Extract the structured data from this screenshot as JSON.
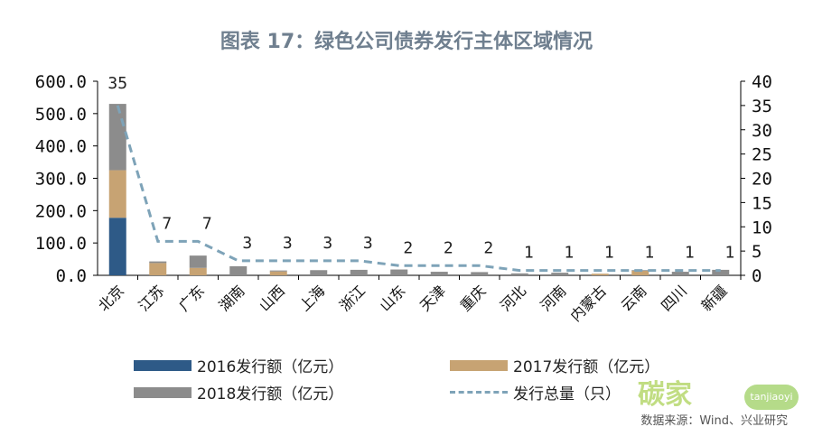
{
  "chart_data": {
    "type": "bar",
    "title": "图表 17：绿色公司债券发行主体区域情况",
    "categories": [
      "北京",
      "江苏",
      "广东",
      "湖南",
      "山西",
      "上海",
      "浙江",
      "山东",
      "天津",
      "重庆",
      "河北",
      "河南",
      "内蒙古",
      "云南",
      "四川",
      "新疆"
    ],
    "series": [
      {
        "name": "2016发行额（亿元）",
        "kind": "stacked-bar",
        "color": "#2e5a87",
        "values": [
          178,
          0,
          0,
          0,
          0,
          0,
          0,
          0,
          0,
          0,
          0,
          0,
          0,
          0,
          0,
          0
        ]
      },
      {
        "name": "2017发行额（亿元）",
        "kind": "stacked-bar",
        "color": "#c7a373",
        "values": [
          147,
          38,
          23,
          0,
          12,
          0,
          0,
          0,
          0,
          0,
          0,
          0,
          5,
          14,
          0,
          0
        ]
      },
      {
        "name": "2018发行额（亿元）",
        "kind": "stacked-bar",
        "color": "#8c8c8c",
        "values": [
          205,
          5,
          38,
          28,
          3,
          16,
          17,
          18,
          11,
          10,
          6,
          8,
          0,
          2,
          11,
          17
        ]
      },
      {
        "name": "发行总量（只）",
        "kind": "line",
        "axis": "right",
        "color": "#7ea3b8",
        "values": [
          35,
          7,
          7,
          3,
          3,
          3,
          3,
          2,
          2,
          2,
          1,
          1,
          1,
          1,
          1,
          1
        ]
      }
    ],
    "data_labels": [
      "35",
      "7",
      "7",
      "3",
      "3",
      "3",
      "3",
      "2",
      "2",
      "2",
      "1",
      "1",
      "1",
      "1",
      "1",
      "1"
    ],
    "y_left": {
      "min": 0,
      "max": 600,
      "ticks": [
        "0.0",
        "100.0",
        "200.0",
        "300.0",
        "400.0",
        "500.0",
        "600.0"
      ]
    },
    "y_right": {
      "min": 0,
      "max": 40,
      "ticks": [
        "0",
        "5",
        "10",
        "15",
        "20",
        "25",
        "30",
        "35",
        "40"
      ]
    },
    "grid": false,
    "legend": "bottom"
  },
  "source": "数据来源：Wind、兴业研究",
  "watermark": {
    "main": "碳家",
    "badge": "tanjiaoyi"
  }
}
